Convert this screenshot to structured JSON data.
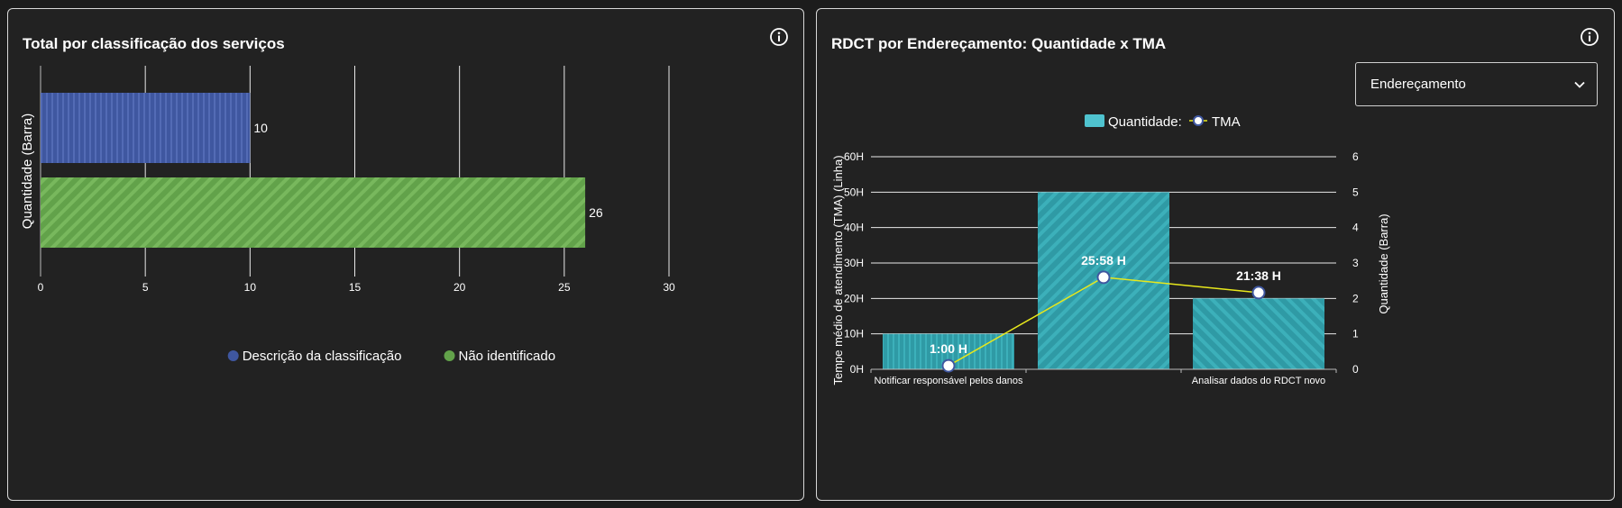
{
  "colors": {
    "background": "#222222",
    "blue_bar": "#3f57a0",
    "green_bar": "#62a24a",
    "teal_bar": "#2f9aa5",
    "teal_legend": "#4fc3cf",
    "tma_line": "#e8e81c",
    "grid": "#ffffff"
  },
  "left_panel": {
    "title": "Total por classificação dos serviços",
    "info_icon": "info-icon"
  },
  "right_panel": {
    "title": "RDCT por Endereçamento: Quantidade x TMA",
    "info_icon": "info-icon",
    "dropdown": {
      "selected": "Endereçamento",
      "icon": "chevron-down-icon"
    }
  },
  "chart_data": [
    {
      "type": "bar",
      "orientation": "horizontal",
      "title": "Total por classificação dos serviços",
      "ylabel": "Quantidade (Barra)",
      "xlabel": "",
      "xlim": [
        0,
        30
      ],
      "xticks": [
        0,
        5,
        10,
        15,
        20,
        25,
        30
      ],
      "grid": true,
      "legend_position": "bottom",
      "series": [
        {
          "name": "Descrição da classificação",
          "value": 10,
          "label": "10"
        },
        {
          "name": "Não identificado",
          "value": 26,
          "label": "26"
        }
      ]
    },
    {
      "type": "bar+line",
      "title": "RDCT por Endereçamento: Quantidade x TMA",
      "categories": [
        "Notificar responsável pelos danos",
        "",
        "Analisar dados do RDCT novo"
      ],
      "ylabel_left": "Tempe médio de atendimento (TMA) (Linha)",
      "ylabel_right": "Quantidade (Barra)",
      "ylim_left_hours": [
        0,
        60
      ],
      "yticks_left": [
        "0H",
        "10H",
        "20H",
        "30H",
        "40H",
        "50H",
        "60H"
      ],
      "ylim_right": [
        0,
        6
      ],
      "yticks_right": [
        "0",
        "1",
        "2",
        "3",
        "4",
        "5",
        "6"
      ],
      "legend_position": "top",
      "legend": [
        "Quantidade:",
        "TMA"
      ],
      "series": [
        {
          "name": "Quantidade",
          "kind": "bar",
          "values": [
            1,
            5,
            2
          ]
        },
        {
          "name": "TMA",
          "kind": "line",
          "values_hours": [
            1.0,
            25.97,
            21.63
          ],
          "labels": [
            "1:00 H",
            "25:58 H",
            "21:38 H"
          ]
        }
      ]
    }
  ]
}
